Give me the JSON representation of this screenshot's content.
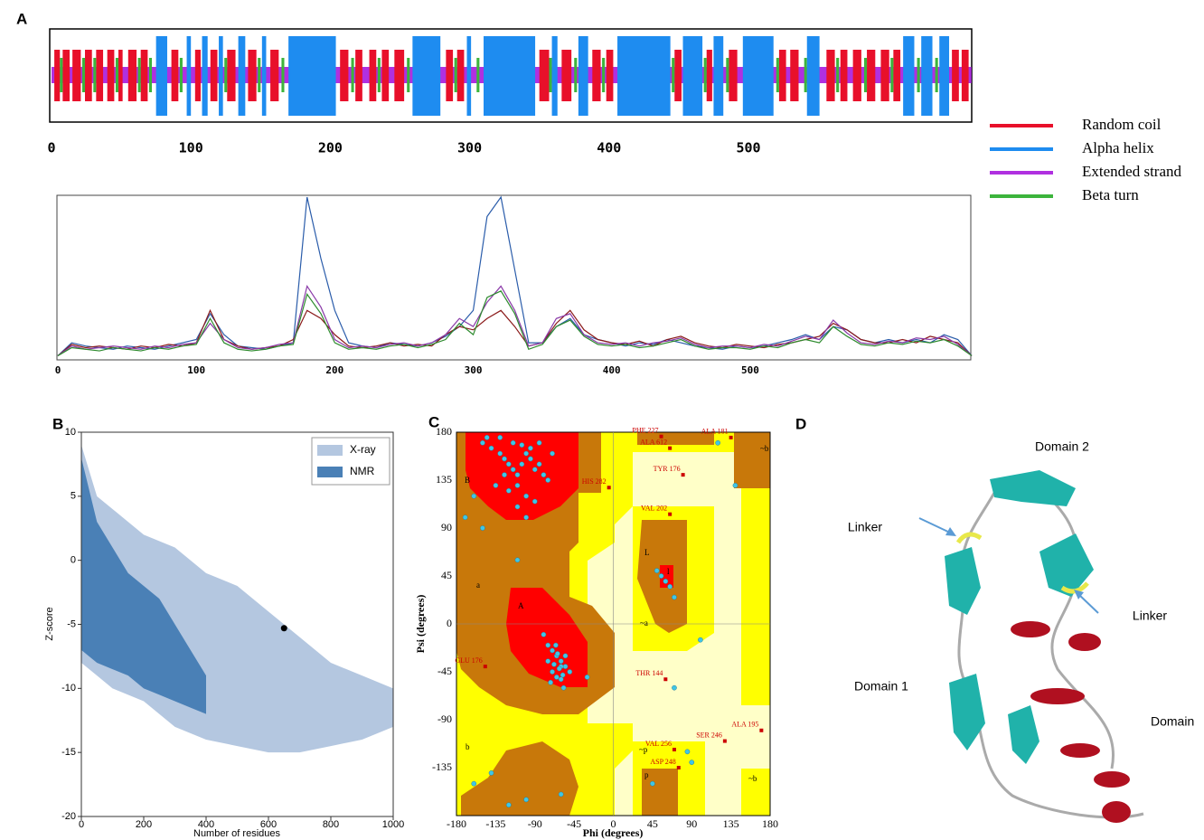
{
  "panels": [
    "A",
    "B",
    "C",
    "D"
  ],
  "chart_data": [
    {
      "type": "track",
      "xlim": [
        0,
        660
      ],
      "xticks": [
        0,
        100,
        200,
        300,
        400,
        500
      ],
      "series": [
        {
          "name": "Random coil",
          "color": "#e8102a",
          "segments": [
            [
              2,
              5
            ],
            [
              8,
              12
            ],
            [
              15,
              20
            ],
            [
              24,
              28
            ],
            [
              32,
              36
            ],
            [
              40,
              44
            ],
            [
              48,
              50
            ],
            [
              55,
              60
            ],
            [
              64,
              68
            ],
            [
              86,
              90
            ],
            [
              103,
              106
            ],
            [
              114,
              118
            ],
            [
              126,
              131
            ],
            [
              141,
              146
            ],
            [
              157,
              162
            ],
            [
              207,
              212
            ],
            [
              218,
              222
            ],
            [
              228,
              232
            ],
            [
              237,
              241
            ],
            [
              246,
              252
            ],
            [
              283,
              287
            ],
            [
              291,
              295
            ],
            [
              350,
              356
            ],
            [
              366,
              372
            ],
            [
              388,
              393
            ],
            [
              398,
              402
            ],
            [
              447,
              451
            ],
            [
              470,
              473
            ],
            [
              486,
              491
            ],
            [
              522,
              526
            ],
            [
              530,
              535
            ],
            [
              556,
              561
            ],
            [
              566,
              570
            ],
            [
              575,
              580
            ],
            [
              585,
              590
            ],
            [
              595,
              600
            ],
            [
              604,
              608
            ],
            [
              646,
              650
            ],
            [
              653,
              657
            ]
          ]
        },
        {
          "name": "Alpha helix",
          "color": "#1e8cf0",
          "segments": [
            [
              75,
              82
            ],
            [
              97,
              99
            ],
            [
              108,
              111
            ],
            [
              120,
              122
            ],
            [
              134,
              138
            ],
            [
              151,
              153
            ],
            [
              170,
              203
            ],
            [
              259,
              278
            ],
            [
              298,
              300
            ],
            [
              310,
              346
            ],
            [
              359,
              362
            ],
            [
              378,
              384
            ],
            [
              406,
              443
            ],
            [
              453,
              466
            ],
            [
              475,
              481
            ],
            [
              496,
              517
            ],
            [
              542,
              550
            ],
            [
              611,
              618
            ],
            [
              624,
              631
            ],
            [
              637,
              643
            ]
          ]
        },
        {
          "name": "Extended strand",
          "color": "#b030e0",
          "segments": [
            [
              0,
              659
            ]
          ]
        },
        {
          "name": "Beta turn",
          "color": "#3cb43c",
          "segments": [
            [
              6,
              7
            ],
            [
              22,
              23
            ],
            [
              30,
              31
            ],
            [
              46,
              47
            ],
            [
              62,
              63
            ],
            [
              70,
              71
            ],
            [
              92,
              93
            ],
            [
              124,
              125
            ],
            [
              148,
              149
            ],
            [
              165,
              166
            ],
            [
              215,
              216
            ],
            [
              234,
              235
            ],
            [
              255,
              256
            ],
            [
              289,
              290
            ],
            [
              305,
              306
            ],
            [
              357,
              358
            ],
            [
              375,
              376
            ],
            [
              395,
              396
            ],
            [
              445,
              446
            ],
            [
              468,
              469
            ],
            [
              484,
              485
            ],
            [
              520,
              521
            ],
            [
              540,
              541
            ],
            [
              563,
              564
            ],
            [
              583,
              584
            ],
            [
              602,
              603
            ],
            [
              621,
              622
            ],
            [
              634,
              635
            ]
          ]
        }
      ]
    },
    {
      "type": "line",
      "xlim": [
        0,
        660
      ],
      "ylim": [
        0,
        1
      ],
      "xticks": [
        0,
        100,
        200,
        300,
        400,
        500
      ],
      "x": [
        0,
        10,
        20,
        30,
        40,
        50,
        60,
        70,
        80,
        90,
        100,
        110,
        120,
        130,
        140,
        150,
        160,
        170,
        180,
        190,
        200,
        210,
        220,
        230,
        240,
        250,
        260,
        270,
        280,
        290,
        300,
        310,
        320,
        330,
        340,
        350,
        360,
        370,
        380,
        390,
        400,
        410,
        420,
        430,
        440,
        450,
        460,
        470,
        480,
        490,
        500,
        510,
        520,
        530,
        540,
        550,
        560,
        570,
        580,
        590,
        600,
        610,
        620,
        630,
        640,
        650,
        660
      ],
      "series": [
        {
          "color": "#2a5caa",
          "values": [
            0.02,
            0.1,
            0.08,
            0.07,
            0.06,
            0.08,
            0.07,
            0.06,
            0.08,
            0.1,
            0.12,
            0.28,
            0.15,
            0.08,
            0.07,
            0.06,
            0.08,
            0.1,
            1.0,
            0.62,
            0.3,
            0.1,
            0.08,
            0.07,
            0.1,
            0.09,
            0.08,
            0.1,
            0.14,
            0.2,
            0.3,
            0.88,
            1.0,
            0.55,
            0.1,
            0.1,
            0.2,
            0.25,
            0.15,
            0.12,
            0.1,
            0.08,
            0.1,
            0.09,
            0.12,
            0.1,
            0.08,
            0.07,
            0.06,
            0.08,
            0.07,
            0.08,
            0.1,
            0.12,
            0.15,
            0.12,
            0.2,
            0.18,
            0.12,
            0.1,
            0.12,
            0.1,
            0.12,
            0.1,
            0.15,
            0.12,
            0.02
          ]
        },
        {
          "color": "#8b1a1a",
          "values": [
            0.02,
            0.09,
            0.07,
            0.08,
            0.07,
            0.06,
            0.08,
            0.07,
            0.09,
            0.08,
            0.1,
            0.3,
            0.12,
            0.08,
            0.06,
            0.07,
            0.08,
            0.12,
            0.3,
            0.25,
            0.15,
            0.08,
            0.07,
            0.08,
            0.1,
            0.08,
            0.09,
            0.08,
            0.15,
            0.2,
            0.18,
            0.25,
            0.3,
            0.2,
            0.08,
            0.1,
            0.22,
            0.3,
            0.18,
            0.12,
            0.1,
            0.09,
            0.11,
            0.08,
            0.12,
            0.14,
            0.1,
            0.08,
            0.07,
            0.09,
            0.08,
            0.07,
            0.09,
            0.1,
            0.12,
            0.14,
            0.22,
            0.18,
            0.12,
            0.1,
            0.1,
            0.12,
            0.1,
            0.14,
            0.12,
            0.1,
            0.02
          ]
        },
        {
          "color": "#8a3aa8",
          "values": [
            0.02,
            0.08,
            0.06,
            0.07,
            0.08,
            0.07,
            0.06,
            0.08,
            0.07,
            0.09,
            0.1,
            0.22,
            0.12,
            0.07,
            0.06,
            0.07,
            0.09,
            0.1,
            0.45,
            0.32,
            0.12,
            0.07,
            0.08,
            0.07,
            0.09,
            0.1,
            0.08,
            0.1,
            0.15,
            0.25,
            0.2,
            0.35,
            0.45,
            0.3,
            0.08,
            0.1,
            0.25,
            0.28,
            0.15,
            0.1,
            0.09,
            0.1,
            0.08,
            0.1,
            0.11,
            0.13,
            0.09,
            0.07,
            0.08,
            0.08,
            0.07,
            0.09,
            0.08,
            0.11,
            0.14,
            0.12,
            0.24,
            0.16,
            0.1,
            0.09,
            0.11,
            0.1,
            0.13,
            0.12,
            0.14,
            0.09,
            0.02
          ]
        },
        {
          "color": "#2e8b2e",
          "values": [
            0.02,
            0.07,
            0.06,
            0.05,
            0.07,
            0.06,
            0.05,
            0.07,
            0.06,
            0.08,
            0.09,
            0.25,
            0.1,
            0.06,
            0.05,
            0.06,
            0.08,
            0.09,
            0.4,
            0.28,
            0.1,
            0.06,
            0.07,
            0.06,
            0.08,
            0.09,
            0.07,
            0.09,
            0.12,
            0.22,
            0.15,
            0.38,
            0.42,
            0.28,
            0.06,
            0.09,
            0.2,
            0.24,
            0.14,
            0.09,
            0.08,
            0.09,
            0.07,
            0.08,
            0.1,
            0.12,
            0.08,
            0.06,
            0.07,
            0.07,
            0.06,
            0.08,
            0.07,
            0.1,
            0.12,
            0.1,
            0.2,
            0.14,
            0.09,
            0.08,
            0.1,
            0.09,
            0.11,
            0.1,
            0.12,
            0.08,
            0.02
          ]
        }
      ]
    },
    {
      "type": "area",
      "xlabel": "Number of residues",
      "ylabel": "Z-score",
      "xlim": [
        0,
        1000
      ],
      "ylim": [
        -20,
        10
      ],
      "xticks": [
        0,
        200,
        400,
        600,
        800,
        1000
      ],
      "yticks": [
        10,
        5,
        0,
        -5,
        -10,
        -15,
        -20
      ],
      "legend": "upper right",
      "series": [
        {
          "name": "X-ray",
          "color": "#b4c7e0",
          "x": [
            0,
            50,
            100,
            200,
            300,
            400,
            500,
            600,
            700,
            800,
            900,
            1000
          ],
          "upper": [
            9,
            5,
            4,
            2,
            1,
            -1,
            -2,
            -4,
            -6,
            -8,
            -9,
            -10
          ],
          "lower": [
            -8,
            -9,
            -10,
            -11,
            -13,
            -14,
            -14.5,
            -15,
            -15,
            -14.5,
            -14,
            -13
          ]
        },
        {
          "name": "NMR",
          "color": "#4a80b6",
          "x": [
            0,
            50,
            100,
            150,
            200,
            250,
            300,
            350,
            400
          ],
          "upper": [
            8,
            3,
            1,
            -1,
            -2,
            -3,
            -5,
            -7,
            -9
          ],
          "lower": [
            -7,
            -8,
            -8.5,
            -9,
            -10,
            -10.5,
            -11,
            -11.5,
            -12
          ]
        }
      ],
      "highlight": {
        "x": 650,
        "y": -5.3,
        "color": "#000000"
      }
    },
    {
      "type": "scatter",
      "xlabel": "Phi (degrees)",
      "ylabel": "Psi (degrees)",
      "xlim": [
        -180,
        180
      ],
      "ylim": [
        -180,
        180
      ],
      "xticks": [
        -180,
        -135,
        -90,
        -45,
        0,
        45,
        90,
        135,
        180
      ],
      "yticks": [
        -135,
        -90,
        -45,
        0,
        45,
        90,
        135,
        180
      ],
      "color": "#3fc6e6",
      "x": [
        -150,
        -140,
        -130,
        -125,
        -120,
        -115,
        -110,
        -105,
        -100,
        -95,
        -90,
        -85,
        -80,
        -75,
        -135,
        -120,
        -110,
        -100,
        -90,
        -145,
        -130,
        -115,
        -105,
        -95,
        -85,
        -125,
        -110,
        -100,
        -160,
        -70,
        -80,
        -75,
        -70,
        -65,
        -60,
        -55,
        -50,
        -70,
        -65,
        -60,
        -55,
        -75,
        -68,
        -62,
        -58,
        -72,
        -66,
        -64,
        -60,
        -57,
        55,
        60,
        65,
        50,
        70,
        -160,
        -100,
        -140,
        -120,
        -60,
        -30,
        70,
        85,
        120,
        100,
        90,
        45,
        -170,
        -150,
        -110,
        140
      ],
      "y": [
        170,
        165,
        160,
        155,
        150,
        145,
        140,
        150,
        160,
        155,
        145,
        150,
        140,
        135,
        130,
        125,
        130,
        120,
        115,
        175,
        175,
        170,
        168,
        165,
        170,
        140,
        110,
        100,
        120,
        160,
        -10,
        -20,
        -25,
        -30,
        -35,
        -40,
        -45,
        -45,
        -50,
        -40,
        -30,
        -35,
        -38,
        -42,
        -48,
        -55,
        -20,
        -28,
        -52,
        -60,
        45,
        40,
        35,
        50,
        25,
        -150,
        -165,
        -140,
        -170,
        -160,
        -50,
        -60,
        -120,
        170,
        -15,
        -130,
        -150,
        100,
        90,
        60,
        130
      ],
      "outliers": {
        "color": "#cc0000",
        "x": [
          55,
          65,
          135,
          80,
          -5,
          65,
          -147,
          60,
          70,
          128,
          75,
          170
        ],
        "y": [
          176,
          165,
          175,
          140,
          128,
          103,
          -40,
          -52,
          -118,
          -110,
          -135,
          -100
        ],
        "labels": [
          "PHE 227",
          "ALA 612",
          "ALA 181",
          "TYR 176",
          "HIS 282",
          "VAL 202",
          "GLU 176",
          "THR 144",
          "VAL 256",
          "SER 246",
          "ASP 248",
          "ALA 195"
        ]
      },
      "region_labels": [
        "B",
        "A",
        "L",
        "l",
        "a",
        "b",
        "p",
        "~b",
        "~a",
        "~p",
        "~b"
      ]
    }
  ],
  "structure": {
    "labels": [
      "Domain 2",
      "Linker",
      "Linker",
      "Domain 1",
      "Domain"
    ]
  }
}
